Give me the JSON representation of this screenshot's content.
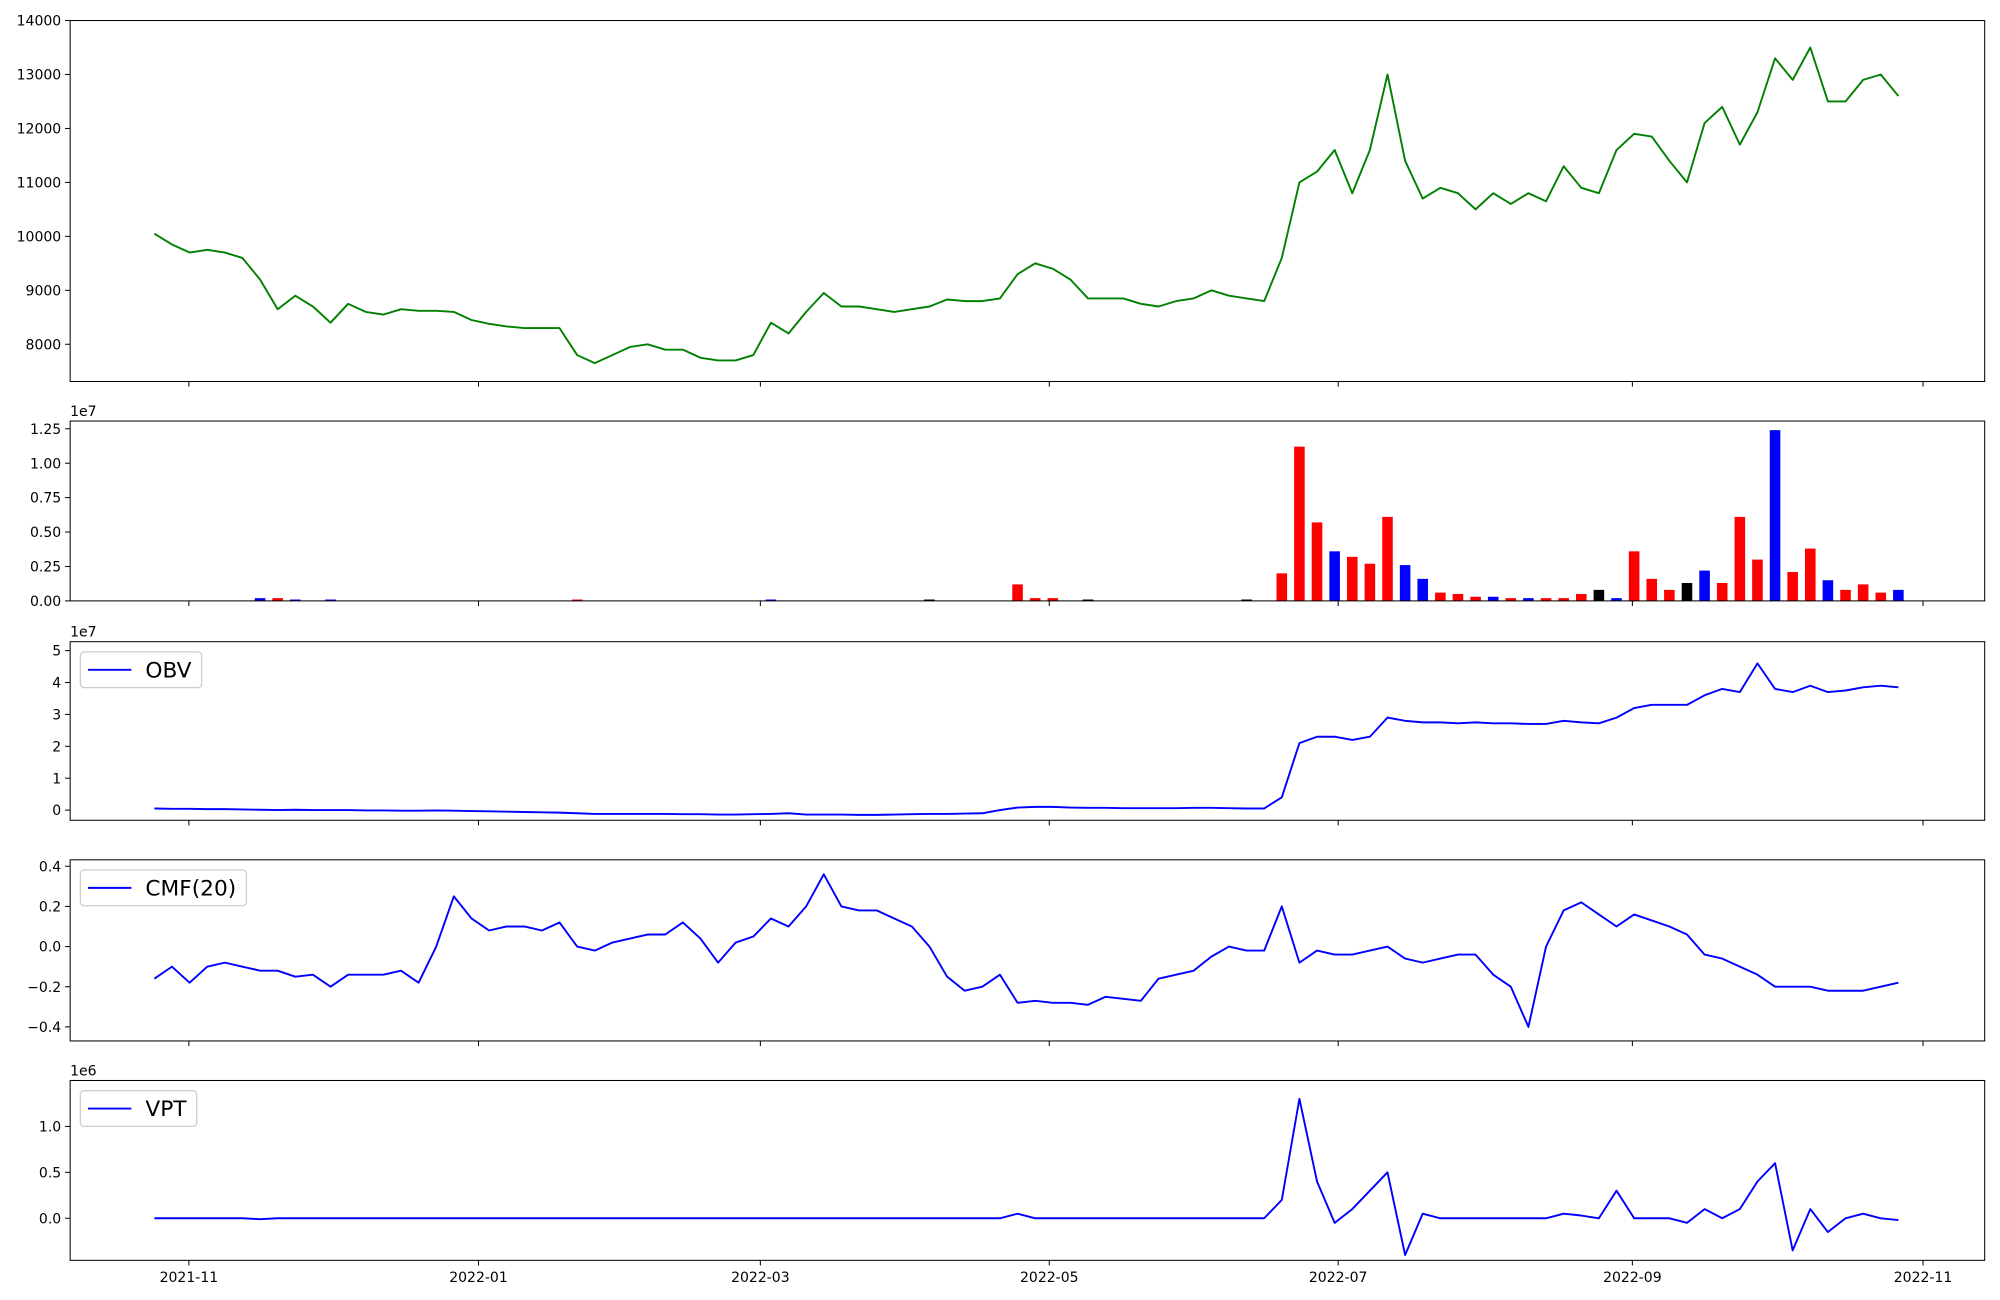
{
  "chart_data": [
    {
      "type": "line",
      "color": "#008000",
      "values": [
        10050,
        9850,
        9700,
        9750,
        9700,
        9600,
        9200,
        8650,
        8900,
        8700,
        8400,
        8750,
        8600,
        8550,
        8650,
        8620,
        8620,
        8600,
        8450,
        8380,
        8330,
        8300,
        8300,
        8300,
        7800,
        7650,
        7800,
        7950,
        8000,
        7900,
        7900,
        7750,
        7700,
        7700,
        7800,
        8400,
        8200,
        8600,
        8950,
        8700,
        8700,
        8650,
        8600,
        8650,
        8700,
        8830,
        8800,
        8800,
        8850,
        9300,
        9500,
        9400,
        9200,
        8850,
        8850,
        8850,
        8750,
        8700,
        8800,
        8850,
        9000,
        8900,
        8850,
        8800,
        9600,
        11000,
        11200,
        11600,
        10800,
        11600,
        13000,
        11400,
        10700,
        10900,
        10800,
        10500,
        10800,
        10600,
        10800,
        10650,
        11300,
        10900,
        10800,
        11600,
        11900,
        11850,
        11400,
        11000,
        12100,
        12400,
        11700,
        12300,
        13300,
        12900,
        13500,
        12500,
        12500,
        12900,
        13000,
        12600
      ],
      "xlim": [
        -4.78,
        103.9
      ],
      "ylim": [
        7310,
        14000
      ],
      "yticks": [
        8000,
        9000,
        10000,
        11000,
        12000,
        13000,
        14000
      ]
    },
    {
      "type": "bar",
      "y_offset_label": "1e7",
      "values": [
        0,
        0,
        0,
        0,
        0,
        0,
        0.02,
        0.02,
        0.01,
        0,
        0.01,
        0,
        0,
        0,
        0,
        0,
        0,
        0,
        0,
        0,
        0,
        0,
        0,
        0,
        0.01,
        0,
        0,
        0,
        0,
        0,
        0,
        0,
        0,
        0,
        0,
        0.01,
        0,
        0,
        0,
        0,
        0,
        0,
        0,
        0,
        0.01,
        0,
        0,
        0,
        0,
        0.12,
        0.02,
        0.02,
        0,
        0.01,
        0,
        0,
        0,
        0,
        0,
        0,
        0,
        0,
        0.01,
        0,
        0.2,
        1.12,
        0.57,
        0.36,
        0.32,
        0.27,
        0.61,
        0.26,
        0.16,
        0.06,
        0.05,
        0.03,
        0.03,
        0.02,
        0.02,
        0.02,
        0.02,
        0.05,
        0.08,
        0.02,
        0.36,
        0.16,
        0.08,
        0.13,
        0.22,
        0.13,
        0.61,
        0.3,
        1.24,
        0.21,
        0.38,
        0.15,
        0.08,
        0.12,
        0.06,
        0.08
      ],
      "colors": [
        "#f00",
        "#f00",
        "#f00",
        "#f00",
        "#f00",
        "#f00",
        "#00f",
        "#f00",
        "#00f",
        "#f00",
        "#00f",
        "#f00",
        "#f00",
        "#f00",
        "#f00",
        "#f00",
        "#f00",
        "#f00",
        "#f00",
        "#f00",
        "#f00",
        "#f00",
        "#f00",
        "#f00",
        "#f00",
        "#f00",
        "#f00",
        "#f00",
        "#f00",
        "#f00",
        "#f00",
        "#f00",
        "#f00",
        "#f00",
        "#f00",
        "#00f",
        "#f00",
        "#f00",
        "#f00",
        "#f00",
        "#f00",
        "#f00",
        "#f00",
        "#f00",
        "#000",
        "#f00",
        "#f00",
        "#f00",
        "#f00",
        "#f00",
        "#f00",
        "#f00",
        "#f00",
        "#000",
        "#f00",
        "#f00",
        "#f00",
        "#f00",
        "#f00",
        "#f00",
        "#f00",
        "#f00",
        "#000",
        "#f00",
        "#f00",
        "#f00",
        "#f00",
        "#00f",
        "#f00",
        "#f00",
        "#f00",
        "#00f",
        "#00f",
        "#f00",
        "#f00",
        "#f00",
        "#00f",
        "#f00",
        "#00f",
        "#f00",
        "#f00",
        "#f00",
        "#000",
        "#00f",
        "#f00",
        "#f00",
        "#f00",
        "#000",
        "#00f",
        "#f00",
        "#f00",
        "#f00",
        "#00f",
        "#f00",
        "#f00",
        "#00f",
        "#f00",
        "#f00",
        "#f00",
        "#00f"
      ],
      "xlim": [
        -4.78,
        103.9
      ],
      "ylim": [
        0,
        1.306
      ],
      "yticks": [
        {
          "value": 0,
          "label": "0.00"
        },
        {
          "value": 0.25,
          "label": "0.25"
        },
        {
          "value": 0.5,
          "label": "0.50"
        },
        {
          "value": 0.75,
          "label": "0.75"
        },
        {
          "value": 1,
          "label": "1.00"
        },
        {
          "value": 1.25,
          "label": "1.25"
        }
      ]
    },
    {
      "type": "line",
      "y_offset_label": "1e7",
      "legend": "upper left",
      "series": [
        {
          "name": "OBV",
          "color": "#0000ff",
          "values": [
            0.05,
            0.04,
            0.04,
            0.03,
            0.03,
            0.02,
            0.01,
            0,
            0.01,
            0,
            0,
            0,
            -0.01,
            -0.01,
            -0.02,
            -0.02,
            -0.01,
            -0.02,
            -0.03,
            -0.04,
            -0.05,
            -0.06,
            -0.07,
            -0.08,
            -0.1,
            -0.12,
            -0.12,
            -0.12,
            -0.12,
            -0.12,
            -0.13,
            -0.13,
            -0.14,
            -0.14,
            -0.13,
            -0.12,
            -0.1,
            -0.14,
            -0.14,
            -0.14,
            -0.15,
            -0.15,
            -0.14,
            -0.13,
            -0.12,
            -0.12,
            -0.11,
            -0.1,
            0,
            0.08,
            0.1,
            0.1,
            0.08,
            0.07,
            0.07,
            0.06,
            0.06,
            0.06,
            0.06,
            0.07,
            0.07,
            0.06,
            0.05,
            0.05,
            0.4,
            2.1,
            2.3,
            2.3,
            2.2,
            2.3,
            2.9,
            2.8,
            2.75,
            2.75,
            2.72,
            2.75,
            2.72,
            2.72,
            2.7,
            2.7,
            2.8,
            2.75,
            2.72,
            2.9,
            3.2,
            3.3,
            3.3,
            3.3,
            3.6,
            3.8,
            3.7,
            4.6,
            3.8,
            3.7,
            3.9,
            3.7,
            3.75,
            3.85,
            3.9,
            3.85
          ]
        }
      ],
      "xlim": [
        -4.78,
        103.9
      ],
      "ylim": [
        -0.32,
        5.28
      ],
      "yticks": [
        0,
        1,
        2,
        3,
        4,
        5
      ]
    },
    {
      "type": "line",
      "legend": "upper left",
      "series": [
        {
          "name": "CMF(20)",
          "color": "#0000ff",
          "values": [
            -0.16,
            -0.1,
            -0.18,
            -0.1,
            -0.08,
            -0.1,
            -0.12,
            -0.12,
            -0.15,
            -0.14,
            -0.2,
            -0.14,
            -0.14,
            -0.14,
            -0.12,
            -0.18,
            0.0,
            0.25,
            0.14,
            0.08,
            0.1,
            0.1,
            0.08,
            0.12,
            0.0,
            -0.02,
            0.02,
            0.04,
            0.06,
            0.06,
            0.12,
            0.04,
            -0.08,
            0.02,
            0.05,
            0.14,
            0.1,
            0.2,
            0.36,
            0.2,
            0.18,
            0.18,
            0.14,
            0.1,
            0.0,
            -0.15,
            -0.22,
            -0.2,
            -0.14,
            -0.28,
            -0.27,
            -0.28,
            -0.28,
            -0.29,
            -0.25,
            -0.26,
            -0.27,
            -0.16,
            -0.14,
            -0.12,
            -0.05,
            0.0,
            -0.02,
            -0.02,
            0.2,
            -0.08,
            -0.02,
            -0.04,
            -0.04,
            -0.02,
            0.0,
            -0.06,
            -0.08,
            -0.06,
            -0.04,
            -0.04,
            -0.14,
            -0.2,
            -0.4,
            0.0,
            0.18,
            0.22,
            0.16,
            0.1,
            0.16,
            0.13,
            0.1,
            0.06,
            -0.04,
            -0.06,
            -0.1,
            -0.14,
            -0.2,
            -0.2,
            -0.2,
            -0.22,
            -0.22,
            -0.22,
            -0.2,
            -0.18
          ]
        }
      ],
      "xlim": [
        -4.78,
        103.9
      ],
      "ylim": [
        -0.47,
        0.432
      ],
      "yticks": [
        {
          "value": -0.4,
          "label": "−0.4"
        },
        {
          "value": -0.2,
          "label": "−0.2"
        },
        {
          "value": 0,
          "label": "0.0"
        },
        0.2,
        0.4
      ]
    },
    {
      "type": "line",
      "y_offset_label": "1e6",
      "legend": "upper left",
      "series": [
        {
          "name": "VPT",
          "color": "#0000ff",
          "values": [
            0,
            0,
            0,
            0,
            0,
            0,
            -0.01,
            0,
            0,
            0,
            0,
            0,
            0,
            0,
            0,
            0,
            0,
            0,
            0,
            0,
            0,
            0,
            0,
            0,
            0,
            0,
            0,
            0,
            0,
            0,
            0,
            0,
            0,
            0,
            0,
            0,
            0,
            0,
            0,
            0,
            0,
            0,
            0,
            0,
            0,
            0,
            0,
            0,
            0,
            0.05,
            0,
            0,
            0,
            0,
            0,
            0,
            0,
            0,
            0,
            0,
            0,
            0,
            0,
            0,
            0.2,
            1.3,
            0.4,
            -0.05,
            0.1,
            0.3,
            0.5,
            -0.4,
            0.05,
            0,
            0,
            0,
            0,
            0,
            0,
            0,
            0.05,
            0.03,
            0,
            0.3,
            0,
            0,
            0,
            -0.05,
            0.1,
            0,
            0.1,
            0.4,
            0.6,
            -0.35,
            0.1,
            -0.15,
            0,
            0.05,
            0,
            -0.02
          ]
        }
      ],
      "xlim": [
        -4.78,
        103.9
      ],
      "ylim": [
        -0.458,
        1.5
      ],
      "yticks": [
        {
          "value": 0,
          "label": "0.0"
        },
        0.5,
        {
          "value": 1,
          "label": "1.0"
        }
      ],
      "xticks": [
        {
          "value": 1.96,
          "label": "2021-11"
        },
        {
          "value": 18.4,
          "label": "2022-01"
        },
        {
          "value": 34.4,
          "label": "2022-03"
        },
        {
          "value": 50.8,
          "label": "2022-05"
        },
        {
          "value": 67.2,
          "label": "2022-07"
        },
        {
          "value": 83.9,
          "label": "2022-09"
        },
        {
          "value": 100.4,
          "label": "2022-11"
        }
      ]
    }
  ]
}
